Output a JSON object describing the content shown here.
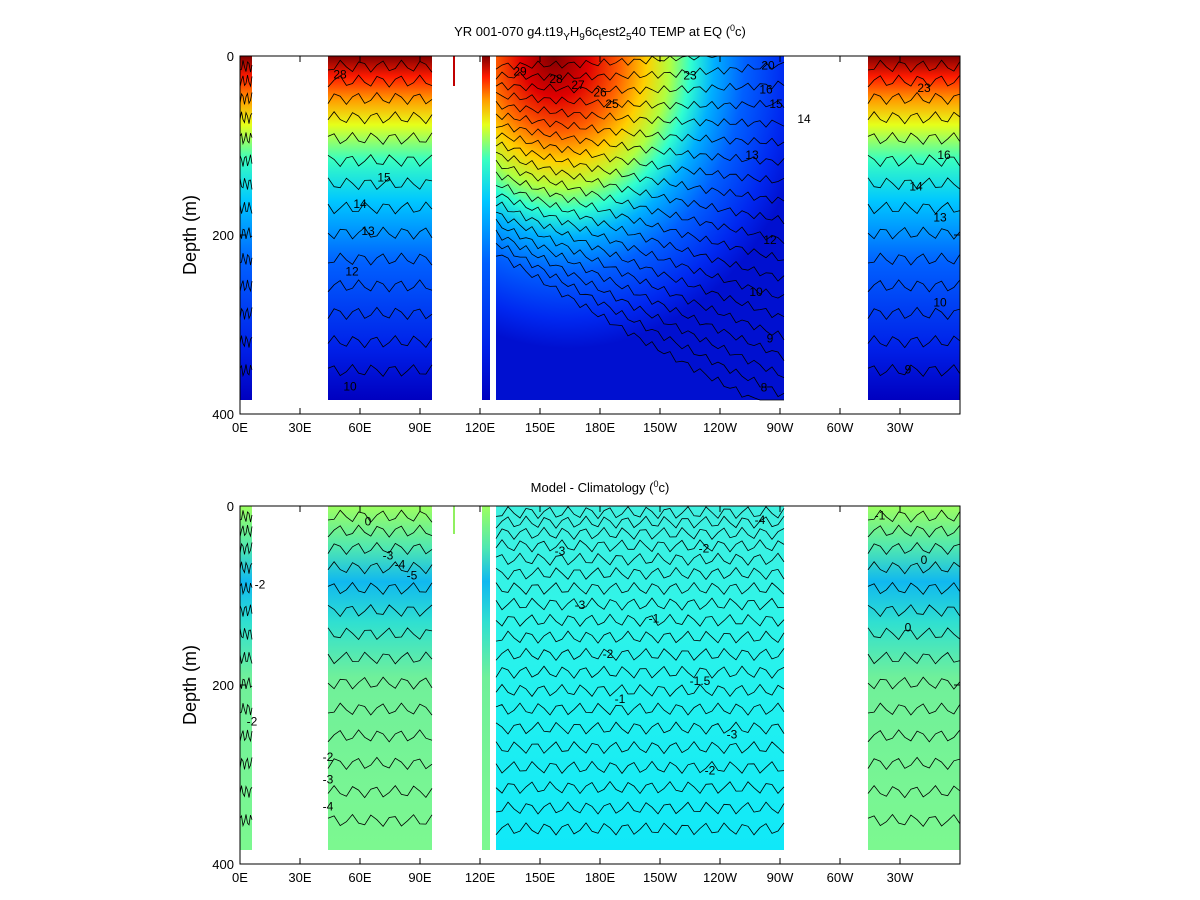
{
  "chart_data": [
    {
      "type": "heatmap",
      "title": "YR 001-070 g4.t19",
      "title_parts": [
        "YR 001-070 g4.t19",
        "Y",
        "H",
        "9",
        "6c",
        "t",
        "est2",
        "5",
        "40 TEMP at EQ (",
        "0",
        "c)"
      ],
      "ylabel": "Depth (m)",
      "xlabel": "",
      "x_ticks": [
        "0E",
        "30E",
        "60E",
        "90E",
        "120E",
        "150E",
        "180E",
        "150W",
        "120W",
        "90W",
        "60W",
        "30W"
      ],
      "x_tick_values": [
        0,
        30,
        60,
        90,
        120,
        150,
        180,
        210,
        240,
        270,
        300,
        330
      ],
      "xlim": [
        0,
        360
      ],
      "y_ticks": [
        "0",
        "200",
        "400"
      ],
      "y_tick_values": [
        0,
        200,
        400
      ],
      "ylim": [
        400,
        0
      ],
      "colormap": "jet",
      "color_range": [
        8,
        30
      ],
      "ocean_x_ranges": [
        [
          0,
          6
        ],
        [
          44,
          96
        ],
        [
          121,
          125
        ],
        [
          128,
          272
        ],
        [
          314,
          360
        ]
      ],
      "isolated_mark_x": 107,
      "contour_labels": [
        {
          "text": "29",
          "x": 140,
          "y": 22
        },
        {
          "text": "28",
          "x": 158,
          "y": 30
        },
        {
          "text": "27",
          "x": 169,
          "y": 37
        },
        {
          "text": "26",
          "x": 180,
          "y": 45
        },
        {
          "text": "25",
          "x": 186,
          "y": 58
        },
        {
          "text": "23",
          "x": 225,
          "y": 26
        },
        {
          "text": "20",
          "x": 264,
          "y": 15
        },
        {
          "text": "16",
          "x": 263,
          "y": 42
        },
        {
          "text": "15",
          "x": 268,
          "y": 58
        },
        {
          "text": "14",
          "x": 282,
          "y": 75
        },
        {
          "text": "13",
          "x": 256,
          "y": 115
        },
        {
          "text": "12",
          "x": 265,
          "y": 210
        },
        {
          "text": "10",
          "x": 258,
          "y": 268
        },
        {
          "text": "9",
          "x": 265,
          "y": 320
        },
        {
          "text": "8",
          "x": 262,
          "y": 375
        },
        {
          "text": "28",
          "x": 50,
          "y": 25
        },
        {
          "text": "15",
          "x": 72,
          "y": 140
        },
        {
          "text": "14",
          "x": 60,
          "y": 170
        },
        {
          "text": "13",
          "x": 64,
          "y": 200
        },
        {
          "text": "12",
          "x": 56,
          "y": 245
        },
        {
          "text": "10",
          "x": 55,
          "y": 374
        },
        {
          "text": "23",
          "x": 342,
          "y": 40
        },
        {
          "text": "16",
          "x": 352,
          "y": 115
        },
        {
          "text": "14",
          "x": 338,
          "y": 150
        },
        {
          "text": "13",
          "x": 350,
          "y": 185
        },
        {
          "text": "10",
          "x": 350,
          "y": 280
        },
        {
          "text": "9",
          "x": 334,
          "y": 355
        }
      ]
    },
    {
      "type": "heatmap",
      "title": "Model - Climatology (",
      "title_parts": [
        "Model - Climatology (",
        "0",
        "c)"
      ],
      "ylabel": "Depth (m)",
      "xlabel": "",
      "x_ticks": [
        "0E",
        "30E",
        "60E",
        "90E",
        "120E",
        "150E",
        "180E",
        "150W",
        "120W",
        "90W",
        "60W",
        "30W"
      ],
      "x_tick_values": [
        0,
        30,
        60,
        90,
        120,
        150,
        180,
        210,
        240,
        270,
        300,
        330
      ],
      "xlim": [
        0,
        360
      ],
      "y_ticks": [
        "0",
        "200",
        "400"
      ],
      "y_tick_values": [
        0,
        200,
        400
      ],
      "ylim": [
        400,
        0
      ],
      "colormap": "jet",
      "color_range": [
        -6,
        6
      ],
      "ocean_x_ranges": [
        [
          0,
          6
        ],
        [
          44,
          96
        ],
        [
          121,
          125
        ],
        [
          128,
          272
        ],
        [
          314,
          360
        ]
      ],
      "isolated_mark_x": 107,
      "contour_labels": [
        {
          "text": "0",
          "x": 64,
          "y": 22
        },
        {
          "text": "-3",
          "x": 74,
          "y": 60
        },
        {
          "text": "-4",
          "x": 80,
          "y": 70
        },
        {
          "text": "-5",
          "x": 86,
          "y": 82
        },
        {
          "text": "-2",
          "x": 10,
          "y": 92
        },
        {
          "text": "-3",
          "x": 160,
          "y": 55
        },
        {
          "text": "-4",
          "x": 260,
          "y": 20
        },
        {
          "text": "-2",
          "x": 232,
          "y": 52
        },
        {
          "text": "-3",
          "x": 170,
          "y": 115
        },
        {
          "text": "-1",
          "x": 207,
          "y": 130
        },
        {
          "text": "-2",
          "x": 184,
          "y": 170
        },
        {
          "text": "-1.5",
          "x": 230,
          "y": 200
        },
        {
          "text": "-1",
          "x": 190,
          "y": 220
        },
        {
          "text": "-3",
          "x": 246,
          "y": 260
        },
        {
          "text": "-2",
          "x": 235,
          "y": 300
        },
        {
          "text": "-1",
          "x": 320,
          "y": 15
        },
        {
          "text": "0",
          "x": 342,
          "y": 65
        },
        {
          "text": "0",
          "x": 334,
          "y": 140
        },
        {
          "text": "-2",
          "x": 6,
          "y": 245
        },
        {
          "text": "-4",
          "x": 44,
          "y": 340
        },
        {
          "text": "-3",
          "x": 44,
          "y": 310
        },
        {
          "text": "-2",
          "x": 44,
          "y": 285
        }
      ]
    }
  ]
}
